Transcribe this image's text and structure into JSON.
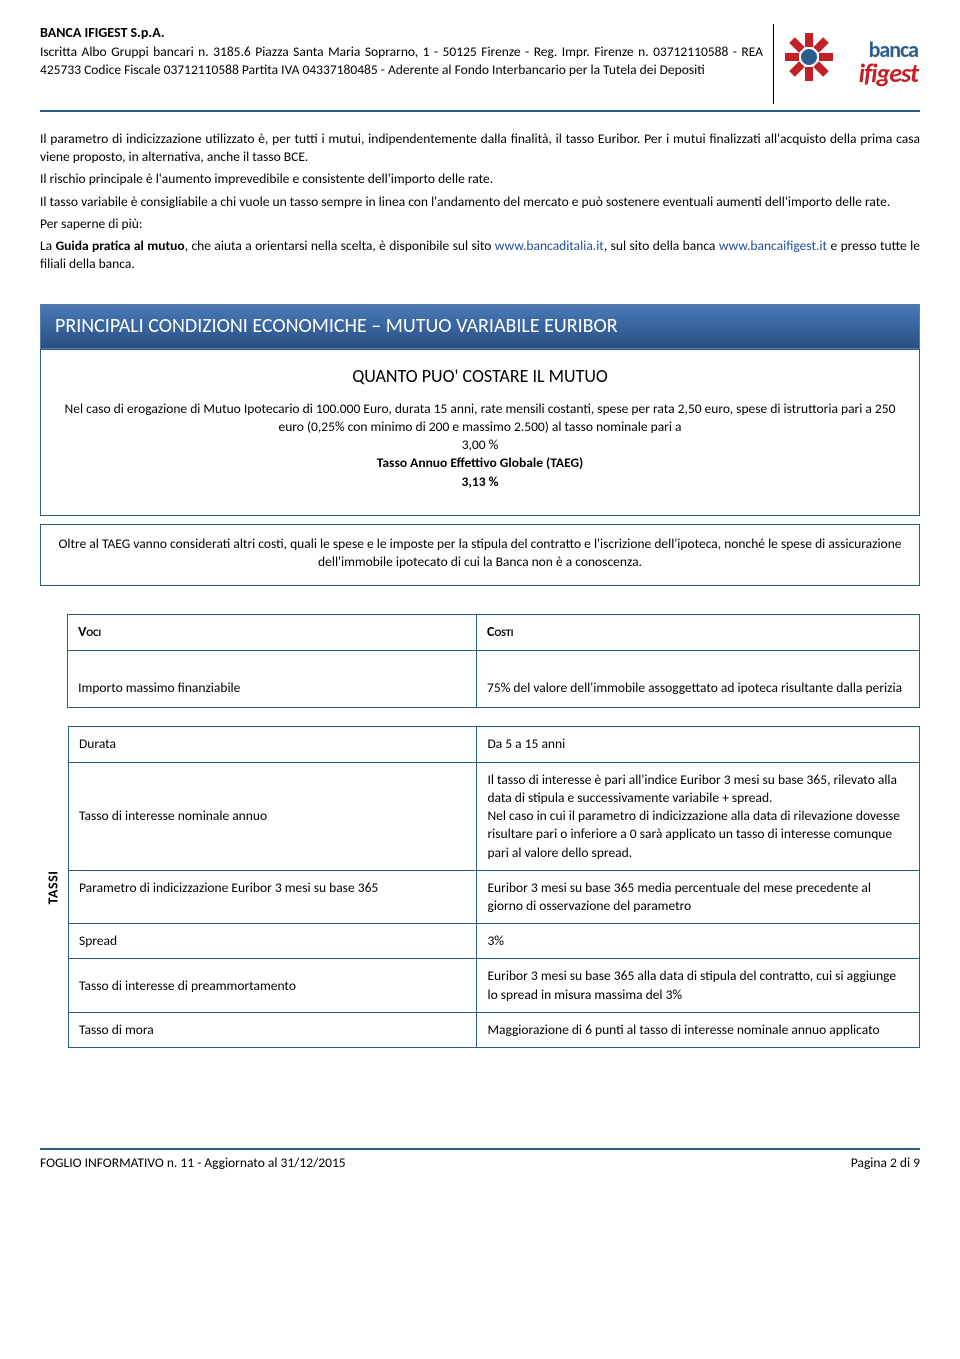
{
  "header": {
    "company": "BANCA IFIGEST S.p.A.",
    "line1": "Iscritta Albo Gruppi bancari n. 3185.6 Piazza Santa Maria Soprarno, 1 - 50125 Firenze - Reg. Impr. Firenze n. 03712110588 - REA 425733 Codice Fiscale 03712110588 Partita IVA 04337180485 - Aderente al Fondo Interbancario per la Tutela dei Depositi",
    "logo": {
      "top": "banca",
      "bottom": "ifigest",
      "mark_color_outer": "#c42127",
      "mark_color_inner": "#2b5d8c"
    }
  },
  "intro": {
    "p1": "Il parametro di indicizzazione utilizzato è, per tutti i mutui, indipendentemente dalla finalità, il tasso Euribor. Per i mutui finalizzati all'acquisto della prima casa viene proposto, in alternativa, anche il tasso BCE.",
    "p2": "Il rischio principale è l'aumento imprevedibile e consistente dell'importo delle rate.",
    "p3": "Il tasso variabile è consigliabile a chi vuole un tasso sempre in linea con l'andamento del mercato e può sostenere eventuali aumenti dell'importo delle rate.",
    "p4_label": "Per saperne di più:",
    "p5_a": "La ",
    "p5_b": "Guida pratica al mutuo",
    "p5_c": ", che aiuta a orientarsi nella scelta, è disponibile sul sito ",
    "p5_link1": "www.bancaditalia.it",
    "p5_d": ", sul sito della banca ",
    "p5_link2": "www.bancaifigest.it",
    "p5_e": " e presso tutte le filiali della banca."
  },
  "banner": "PRINCIPALI CONDIZIONI ECONOMICHE – MUTUO VARIABILE EURIBOR",
  "box1": {
    "title": "QUANTO PUO' COSTARE IL MUTUO",
    "p1": "Nel caso di erogazione di Mutuo Ipotecario di 100.000 Euro, durata 15 anni, rate mensili costanti, spese per rata 2,50 euro, spese di istruttoria pari a 250 euro (0,25% con minimo di 200 e massimo 2.500) al tasso nominale pari a",
    "rate1": "3,00 %",
    "label_taeg": "Tasso Annuo Effettivo Globale (TAEG)",
    "rate2": "3,13 %"
  },
  "box2": {
    "p": "Oltre al TAEG vanno considerati altri costi, quali le spese e le imposte per la stipula del contratto e l'iscrizione dell'ipoteca, nonché le spese di assicurazione dell'immobile ipotecato di cui la Banca non è a conoscenza."
  },
  "table1": {
    "head_voci": "Voci",
    "head_costi": "Costi",
    "row_importo_l": "Importo massimo finanziabile",
    "row_importo_r": "75% del valore dell'immobile assoggettato ad ipoteca risultante dalla perizia"
  },
  "table2": {
    "side": "TASSI",
    "r1l": "Durata",
    "r1r": "Da 5 a 15 anni",
    "r2l": "Tasso di interesse nominale annuo",
    "r2r": "Il tasso di interesse è pari all'indice Euribor 3 mesi su base 365, rilevato alla data di stipula e successivamente variabile + spread.\nNel caso in cui il parametro di indicizzazione alla data di rilevazione dovesse risultare pari o inferiore a 0 sarà applicato un tasso di interesse comunque pari al valore dello spread.",
    "r3l": "Parametro di indicizzazione Euribor 3 mesi su base 365",
    "r3r": "Euribor 3 mesi su base 365 media percentuale del mese precedente al giorno di osservazione del parametro",
    "r4l": "Spread",
    "r4r": "3%",
    "r5l": "Tasso di interesse di preammortamento",
    "r5r": "Euribor 3 mesi su base 365 alla data di stipula del contratto, cui si aggiunge lo spread in misura massima del 3%",
    "r6l": "Tasso di mora",
    "r6r": "Maggiorazione di 6 punti al tasso di interesse nominale annuo applicato"
  },
  "footer": {
    "left": "FOGLIO INFORMATIVO n. 11 - Aggiornato al 31/12/2015",
    "right": "Pagina 2 di 9"
  },
  "colors": {
    "brand_blue": "#2b5d8c",
    "brand_red": "#c42127",
    "banner_top": "#4b7bb5",
    "banner_bottom": "#2a4f84",
    "link": "#1f4e9c"
  }
}
